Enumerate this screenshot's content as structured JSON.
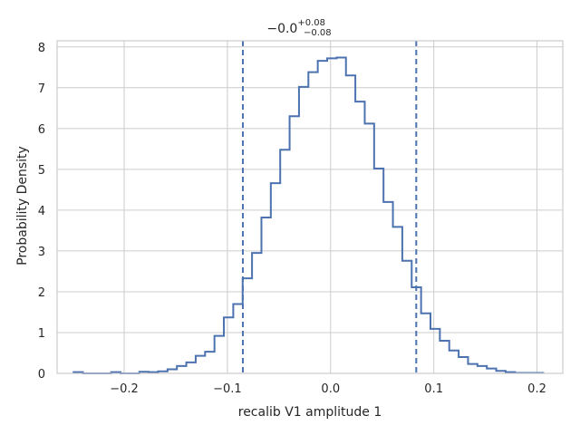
{
  "chart_data": {
    "type": "histogram",
    "title": {
      "value": "−0.0",
      "upper": "+0.08",
      "lower": "−0.08"
    },
    "xlabel": "recalib V1 amplitude 1",
    "ylabel": "Probability Density",
    "xlim": [
      -0.265,
      0.225
    ],
    "ylim": [
      0,
      8.15
    ],
    "xticks": [
      -0.2,
      -0.1,
      0.0,
      0.1,
      0.2
    ],
    "xtick_labels": [
      "−0.2",
      "−0.1",
      "0.0",
      "0.1",
      "0.2"
    ],
    "yticks": [
      0,
      1,
      2,
      3,
      4,
      5,
      6,
      7,
      8
    ],
    "ytick_labels": [
      "0",
      "1",
      "2",
      "3",
      "4",
      "5",
      "6",
      "7",
      "8"
    ],
    "grid": true,
    "color": "#4c72b0",
    "bin_edges": [
      -0.249,
      -0.2399,
      -0.2308,
      -0.2217,
      -0.2126,
      -0.2035,
      -0.1944,
      -0.1853,
      -0.1762,
      -0.1671,
      -0.158,
      -0.1489,
      -0.1398,
      -0.1307,
      -0.1216,
      -0.1125,
      -0.1034,
      -0.0943,
      -0.0852,
      -0.0761,
      -0.067,
      -0.0579,
      -0.0488,
      -0.0397,
      -0.0306,
      -0.0215,
      -0.0124,
      -0.0033,
      0.0058,
      0.0149,
      0.024,
      0.0331,
      0.0422,
      0.0513,
      0.0604,
      0.0695,
      0.0786,
      0.0877,
      0.0968,
      0.1059,
      0.115,
      0.1241,
      0.1332,
      0.1423,
      0.1514,
      0.1605,
      0.1696,
      0.1787,
      0.1878,
      0.1969,
      0.206
    ],
    "densities": [
      0.03,
      0.0,
      0.0,
      0.0,
      0.03,
      0.0,
      0.0,
      0.04,
      0.03,
      0.05,
      0.1,
      0.18,
      0.27,
      0.43,
      0.53,
      0.92,
      1.37,
      1.7,
      2.33,
      2.95,
      3.82,
      4.66,
      5.48,
      6.3,
      7.02,
      7.38,
      7.66,
      7.72,
      7.74,
      7.3,
      6.66,
      6.12,
      5.02,
      4.2,
      3.59,
      2.76,
      2.11,
      1.47,
      1.09,
      0.8,
      0.56,
      0.4,
      0.23,
      0.18,
      0.12,
      0.06,
      0.03,
      0.01,
      0.01,
      0.01
    ],
    "vlines": [
      -0.085,
      0.083
    ],
    "vline_style": "dashed"
  }
}
